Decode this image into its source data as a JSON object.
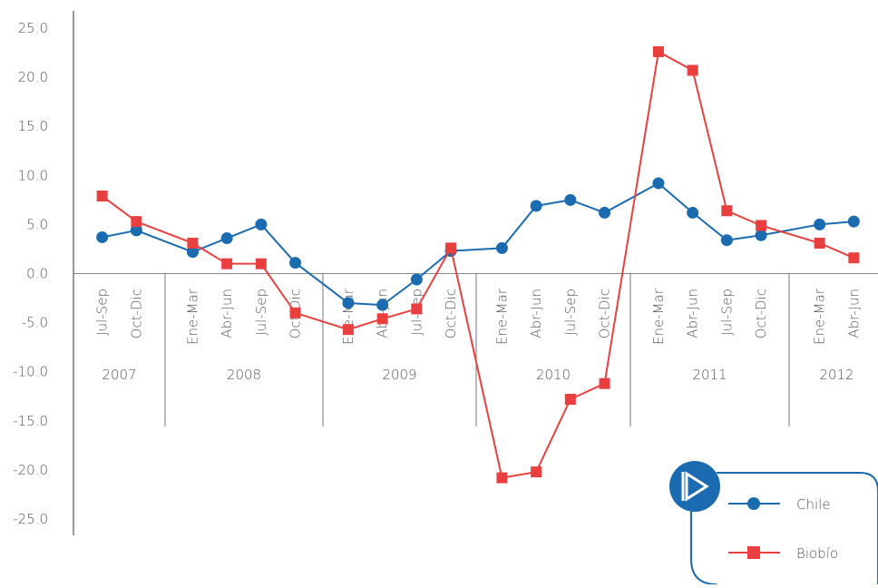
{
  "chart_data": {
    "type": "line",
    "groups": [
      {
        "name": "2007",
        "categories": [
          "Jul-Sep",
          "Oct-Dic"
        ]
      },
      {
        "name": "2008",
        "categories": [
          "Ene-Mar",
          "Abr-Jun",
          "Jul-Sep",
          "Oct-Dic"
        ]
      },
      {
        "name": "2009",
        "categories": [
          "Ene-Mar",
          "Abr-Jun",
          "Jul-Sep",
          "Oct-Dic"
        ]
      },
      {
        "name": "2010",
        "categories": [
          "Ene-Mar",
          "Abr-Jun",
          "Jul-Sep",
          "Oct-Dic"
        ]
      },
      {
        "name": "2011",
        "categories": [
          "Ene-Mar",
          "Abr-Jun",
          "Jul-Sep",
          "Oct-Dic"
        ]
      },
      {
        "name": "2012",
        "categories": [
          "Ene-Mar",
          "Abr-Jun"
        ]
      }
    ],
    "series": [
      {
        "name": "Chile",
        "color": "#1a6bb0",
        "marker": "circle",
        "values": [
          3.7,
          4.4,
          2.2,
          3.6,
          5.0,
          1.1,
          -3.0,
          -3.2,
          -0.6,
          2.3,
          2.6,
          6.9,
          7.5,
          6.2,
          9.2,
          6.2,
          3.4,
          3.9,
          5.0,
          5.3
        ]
      },
      {
        "name": "Biobío",
        "color": "#e8403f",
        "marker": "square",
        "values": [
          7.9,
          5.3,
          3.1,
          1.0,
          1.0,
          -4.0,
          -5.7,
          -4.6,
          -3.6,
          2.6,
          -20.8,
          -20.2,
          -12.8,
          -11.2,
          22.6,
          20.7,
          6.4,
          4.9,
          3.1,
          1.6
        ]
      }
    ],
    "ylim": [
      -25,
      25
    ],
    "yticks": [
      {
        "value": 25,
        "label": "25.0"
      },
      {
        "value": 20,
        "label": "20.0"
      },
      {
        "value": 15,
        "label": "15.0"
      },
      {
        "value": 10,
        "label": "10.0"
      },
      {
        "value": 5,
        "label": "5.0"
      },
      {
        "value": 0,
        "label": "0.0"
      },
      {
        "value": -5,
        "label": "-5.0"
      },
      {
        "value": -10,
        "label": "-10.0"
      },
      {
        "value": -15,
        "label": "-15.0"
      },
      {
        "value": -20,
        "label": "-20.0"
      },
      {
        "value": -25,
        "label": "-25.0"
      }
    ]
  }
}
